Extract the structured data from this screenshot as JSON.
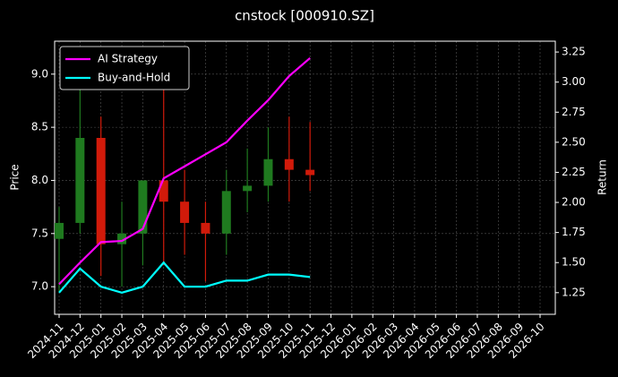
{
  "chart_data": {
    "type": "candlestick",
    "title": "cnstock [000910.SZ]",
    "ylabel": "Price",
    "y2label": "Return",
    "x": [
      "2024-11",
      "2024-12",
      "2025-01",
      "2025-02",
      "2025-03",
      "2025-04",
      "2025-05",
      "2025-06",
      "2025-07",
      "2025-08",
      "2025-09",
      "2025-10",
      "2025-11"
    ],
    "open": [
      7.45,
      7.6,
      8.4,
      7.4,
      7.5,
      8.0,
      7.8,
      7.6,
      7.5,
      7.9,
      7.95,
      8.2,
      8.1
    ],
    "high": [
      7.75,
      9.2,
      8.6,
      7.8,
      8.0,
      9.1,
      8.1,
      7.8,
      8.1,
      8.3,
      8.5,
      8.6,
      8.55
    ],
    "low": [
      6.95,
      7.5,
      7.1,
      7.0,
      7.2,
      7.2,
      7.3,
      7.05,
      7.3,
      7.7,
      7.8,
      7.8,
      7.9
    ],
    "close": [
      7.6,
      8.4,
      7.4,
      7.5,
      8.0,
      7.8,
      7.6,
      7.5,
      7.9,
      7.95,
      8.2,
      8.1,
      8.05
    ],
    "up_color": "#1f7a1f",
    "down_color": "#d11a0a",
    "series": [
      {
        "name": "AI Strategy",
        "color": "#ff00ff",
        "axis": "y2",
        "values": [
          1.32,
          1.5,
          1.67,
          1.68,
          1.78,
          2.2,
          2.3,
          2.4,
          2.5,
          2.68,
          2.85,
          3.05,
          3.2
        ]
      },
      {
        "name": "Buy-and-Hold",
        "color": "#00ffff",
        "axis": "y2",
        "values": [
          1.25,
          1.45,
          1.3,
          1.25,
          1.3,
          1.5,
          1.3,
          1.3,
          1.35,
          1.35,
          1.4,
          1.4,
          1.38
        ]
      }
    ],
    "xlim": [
      "2024-11",
      "2026-10"
    ],
    "xticks": [
      "2024-11",
      "2024-12",
      "2025-01",
      "2025-02",
      "2025-03",
      "2025-04",
      "2025-05",
      "2025-06",
      "2025-07",
      "2025-08",
      "2025-09",
      "2025-10",
      "2025-11",
      "2025-12",
      "2026-01",
      "2026-02",
      "2026-03",
      "2026-04",
      "2026-05",
      "2026-06",
      "2026-07",
      "2026-08",
      "2026-09",
      "2026-10"
    ],
    "ylim": [
      6.74,
      9.31
    ],
    "yticks": [
      {
        "value": 7,
        "label": "7.0"
      },
      7.5,
      {
        "value": 8,
        "label": "8.0"
      },
      8.5,
      {
        "value": 9,
        "label": "9.0"
      }
    ],
    "y2lim": [
      1.07,
      3.34
    ],
    "y2ticks": [
      1.25,
      {
        "value": 1.5,
        "label": "1.50"
      },
      1.75,
      {
        "value": 2,
        "label": "2.00"
      },
      2.25,
      {
        "value": 2.5,
        "label": "2.50"
      },
      2.75,
      {
        "value": 3,
        "label": "3.00"
      },
      3.25
    ],
    "grid": true,
    "legend": "upper-left"
  }
}
